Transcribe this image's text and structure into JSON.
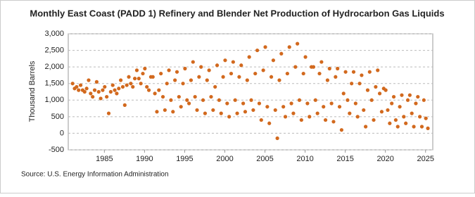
{
  "chart_data": {
    "type": "scatter",
    "title": "Monthly East Coast (PADD 1) Refinery and Blender Net Production of Hydrocarbon Gas Liquids",
    "y_label": "Thousand Barrels",
    "source": "Source: U.S. Energy Information Administration",
    "color": "#d2691e",
    "grid": true,
    "xlim": [
      1980.5,
      2025.9
    ],
    "ylim": [
      -500,
      3000
    ],
    "xticks": [
      1985,
      1990,
      1995,
      2000,
      2005,
      2010,
      2015,
      2020,
      2025
    ],
    "yticks": [
      {
        "value": 3000,
        "label": "3,000"
      },
      {
        "value": 2500,
        "label": "2,500"
      },
      {
        "value": 2000,
        "label": "2,000"
      },
      {
        "value": 1500,
        "label": "1,500"
      },
      {
        "value": 1000,
        "label": "1,000"
      },
      500,
      0,
      -500
    ],
    "x": [
      1981.04,
      1981.29,
      1981.54,
      1981.79,
      1982.04,
      1982.29,
      1982.54,
      1982.79,
      1983.04,
      1983.29,
      1983.54,
      1983.79,
      1984.04,
      1984.29,
      1984.54,
      1984.79,
      1985.04,
      1985.29,
      1985.54,
      1985.79,
      1986.04,
      1986.29,
      1986.54,
      1986.79,
      1987.04,
      1987.29,
      1987.54,
      1987.79,
      1988.04,
      1988.29,
      1988.54,
      1988.79,
      1989.04,
      1989.29,
      1989.54,
      1989.79,
      1990.04,
      1990.29,
      1990.54,
      1990.79,
      1991.04,
      1991.29,
      1991.54,
      1991.79,
      1992.04,
      1992.29,
      1992.54,
      1992.79,
      1993.04,
      1993.29,
      1993.54,
      1993.79,
      1994.04,
      1994.29,
      1994.54,
      1994.79,
      1995.04,
      1995.29,
      1995.54,
      1995.79,
      1996.04,
      1996.29,
      1996.54,
      1996.79,
      1997.04,
      1997.29,
      1997.54,
      1997.79,
      1998.04,
      1998.29,
      1998.54,
      1998.79,
      1999.04,
      1999.29,
      1999.54,
      1999.79,
      2000.04,
      2000.29,
      2000.54,
      2000.79,
      2001.04,
      2001.29,
      2001.54,
      2001.79,
      2002.04,
      2002.29,
      2002.54,
      2002.79,
      2003.04,
      2003.29,
      2003.54,
      2003.79,
      2004.04,
      2004.29,
      2004.54,
      2004.79,
      2005.04,
      2005.29,
      2005.54,
      2005.79,
      2006.04,
      2006.29,
      2006.54,
      2006.79,
      2007.04,
      2007.29,
      2007.54,
      2007.79,
      2008.04,
      2008.29,
      2008.54,
      2008.79,
      2009.04,
      2009.29,
      2009.54,
      2009.79,
      2010.04,
      2010.29,
      2010.54,
      2010.79,
      2011.04,
      2011.29,
      2011.54,
      2011.79,
      2012.04,
      2012.29,
      2012.54,
      2012.79,
      2013.04,
      2013.29,
      2013.54,
      2013.79,
      2014.04,
      2014.29,
      2014.54,
      2014.79,
      2015.04,
      2015.29,
      2015.54,
      2015.79,
      2016.04,
      2016.29,
      2016.54,
      2016.79,
      2017.04,
      2017.29,
      2017.54,
      2017.79,
      2018.04,
      2018.29,
      2018.54,
      2018.79,
      2019.04,
      2019.29,
      2019.54,
      2019.79,
      2020.04,
      2020.29,
      2020.54,
      2020.79,
      2021.04,
      2021.29,
      2021.54,
      2021.79,
      2022.04,
      2022.29,
      2022.54,
      2022.79,
      2023.04,
      2023.29,
      2023.54,
      2023.79,
      2024.04,
      2024.29,
      2024.54,
      2024.79,
      2025.04,
      2025.29
    ],
    "values": [
      1500,
      1350,
      1400,
      1300,
      1450,
      1300,
      1250,
      1350,
      1600,
      1200,
      1100,
      1300,
      1550,
      1250,
      1050,
      1300,
      1400,
      1100,
      600,
      1250,
      1450,
      1300,
      1200,
      1350,
      1600,
      1400,
      850,
      1450,
      1700,
      1500,
      1400,
      1650,
      1900,
      1650,
      1500,
      1800,
      1950,
      1400,
      1300,
      1700,
      1700,
      1200,
      650,
      1300,
      1800,
      1100,
      700,
      1500,
      1900,
      1000,
      650,
      1600,
      1850,
      1100,
      800,
      1500,
      1950,
      1000,
      900,
      1600,
      2150,
      1100,
      700,
      1700,
      2000,
      1000,
      600,
      1600,
      1900,
      1100,
      700,
      1400,
      2050,
      1000,
      600,
      1700,
      2200,
      900,
      500,
      1800,
      2150,
      1000,
      600,
      1700,
      2050,
      900,
      650,
      1600,
      2300,
      1000,
      700,
      1800,
      2500,
      900,
      400,
      1900,
      2600,
      800,
      300,
      1700,
      2200,
      700,
      -150,
      1600,
      2400,
      800,
      500,
      1800,
      2600,
      900,
      600,
      2000,
      2700,
      1000,
      400,
      1800,
      2300,
      900,
      500,
      2000,
      2000,
      1000,
      600,
      1800,
      2150,
      800,
      400,
      1600,
      1950,
      900,
      350,
      1700,
      1950,
      800,
      100,
      1200,
      1850,
      1000,
      600,
      1500,
      1850,
      900,
      500,
      1500,
      1750,
      700,
      200,
      1300,
      1850,
      1000,
      400,
      1400,
      1900,
      1200,
      650,
      1350,
      1300,
      700,
      300,
      900,
      1100,
      400,
      200,
      800,
      1150,
      500,
      300,
      1000,
      1150,
      600,
      200,
      900,
      1100,
      500,
      200,
      1000,
      450,
      150
    ]
  }
}
